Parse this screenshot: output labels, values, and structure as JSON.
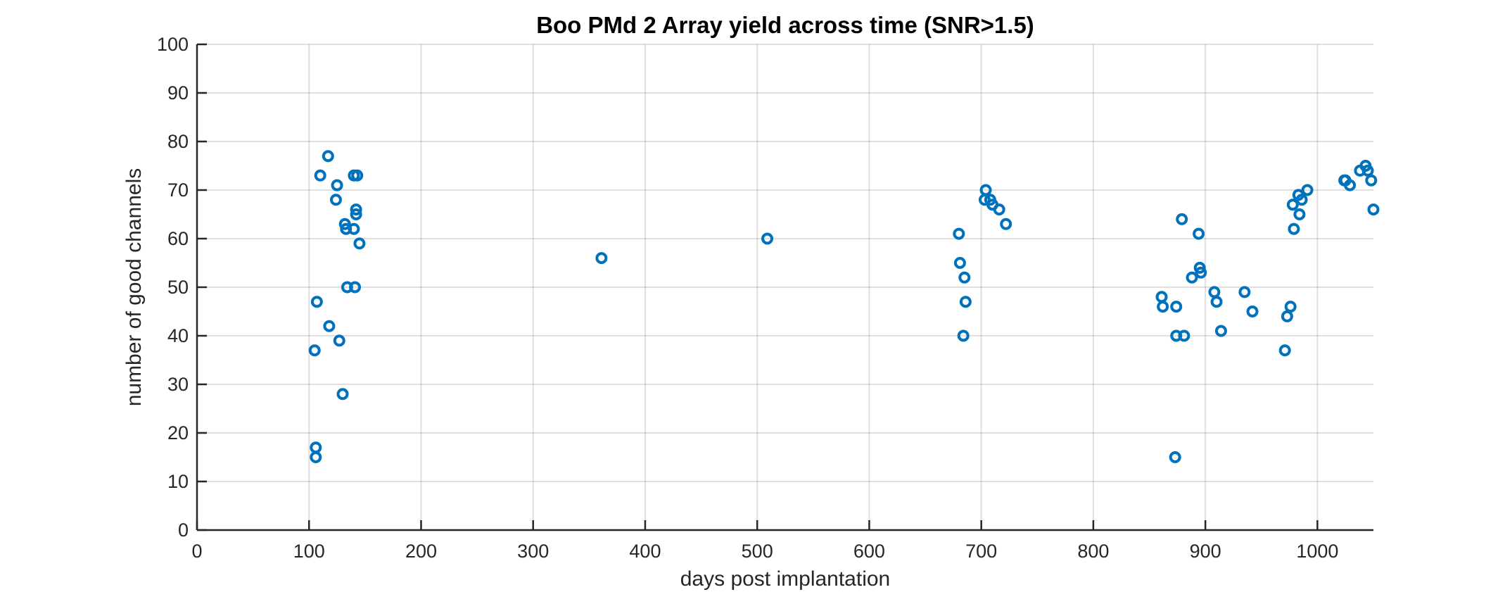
{
  "chart_data": {
    "type": "scatter",
    "title": "Boo PMd 2 Array yield across time (SNR>1.5)",
    "xlabel": "days post implantation",
    "ylabel": "number of good channels",
    "xlim": [
      0,
      1050
    ],
    "ylim": [
      0,
      100
    ],
    "xticks": [
      0,
      100,
      200,
      300,
      400,
      500,
      600,
      700,
      800,
      900,
      1000
    ],
    "yticks": [
      0,
      10,
      20,
      30,
      40,
      50,
      60,
      70,
      80,
      90,
      100
    ],
    "grid": true,
    "marker": "circle-open",
    "color": "#0072BD",
    "series": [
      {
        "points": [
          [
            105,
            37
          ],
          [
            106,
            15
          ],
          [
            106,
            17
          ],
          [
            107,
            47
          ],
          [
            110,
            73
          ],
          [
            117,
            77
          ],
          [
            118,
            42
          ],
          [
            124,
            68
          ],
          [
            125,
            71
          ],
          [
            127,
            39
          ],
          [
            130,
            28
          ],
          [
            132,
            63
          ],
          [
            133,
            62
          ],
          [
            134,
            50
          ],
          [
            140,
            73
          ],
          [
            140,
            62
          ],
          [
            141,
            50
          ],
          [
            142,
            66
          ],
          [
            142,
            65
          ],
          [
            143,
            73
          ],
          [
            145,
            59
          ],
          [
            361,
            56
          ],
          [
            509,
            60
          ],
          [
            680,
            61
          ],
          [
            681,
            55
          ],
          [
            684,
            40
          ],
          [
            685,
            52
          ],
          [
            686,
            47
          ],
          [
            703,
            68
          ],
          [
            704,
            70
          ],
          [
            708,
            68
          ],
          [
            710,
            67
          ],
          [
            716,
            66
          ],
          [
            722,
            63
          ],
          [
            861,
            48
          ],
          [
            862,
            46
          ],
          [
            873,
            15
          ],
          [
            874,
            40
          ],
          [
            874,
            46
          ],
          [
            879,
            64
          ],
          [
            881,
            40
          ],
          [
            888,
            52
          ],
          [
            894,
            61
          ],
          [
            895,
            54
          ],
          [
            896,
            53
          ],
          [
            908,
            49
          ],
          [
            910,
            47
          ],
          [
            914,
            41
          ],
          [
            935,
            49
          ],
          [
            942,
            45
          ],
          [
            971,
            37
          ],
          [
            973,
            44
          ],
          [
            976,
            46
          ],
          [
            978,
            67
          ],
          [
            979,
            62
          ],
          [
            983,
            69
          ],
          [
            984,
            65
          ],
          [
            986,
            68
          ],
          [
            991,
            70
          ],
          [
            1024,
            72
          ],
          [
            1025,
            72
          ],
          [
            1029,
            71
          ],
          [
            1038,
            74
          ],
          [
            1043,
            75
          ],
          [
            1045,
            74
          ],
          [
            1048,
            72
          ],
          [
            1050,
            66
          ]
        ]
      }
    ]
  }
}
